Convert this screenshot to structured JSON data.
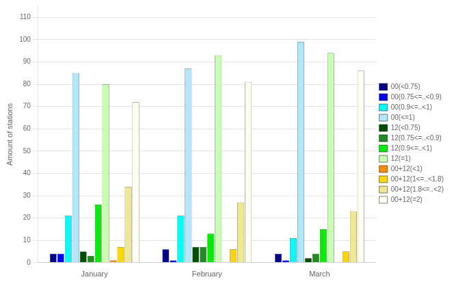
{
  "chart_data": {
    "type": "bar",
    "categories": [
      "January",
      "February",
      "March"
    ],
    "series": [
      {
        "name": "00(<0.75)",
        "color": "#00008B",
        "values": [
          4,
          6,
          4
        ]
      },
      {
        "name": "00(0.75<=..<0.9)",
        "color": "#0000FF",
        "values": [
          4,
          1,
          1
        ]
      },
      {
        "name": "00(0.9<=..<1)",
        "color": "#00FFFF",
        "values": [
          21,
          21,
          11
        ]
      },
      {
        "name": "00(<=1)",
        "color": "#B0E8FF",
        "values": [
          85,
          87,
          99
        ]
      },
      {
        "name": "12(<0.75)",
        "color": "#005000",
        "values": [
          5,
          7,
          2
        ]
      },
      {
        "name": "12(0.75<=..<0.9)",
        "color": "#228B22",
        "values": [
          3,
          7,
          4
        ]
      },
      {
        "name": "12(0.9<=..<1)",
        "color": "#00EE00",
        "values": [
          26,
          13,
          15
        ]
      },
      {
        "name": "12(=1)",
        "color": "#C8FFB0",
        "values": [
          80,
          93,
          94
        ]
      },
      {
        "name": "00+12(<1)",
        "color": "#FF8C00",
        "values": [
          1,
          0,
          0
        ]
      },
      {
        "name": "00+12(1<=..<1.8)",
        "color": "#FFD700",
        "values": [
          7,
          6,
          5
        ]
      },
      {
        "name": "00+12(1.8<=..<2)",
        "color": "#F0E890",
        "values": [
          34,
          27,
          23
        ]
      },
      {
        "name": "00+12(=2)",
        "color": "#FFFFF0",
        "values": [
          72,
          81,
          86
        ]
      }
    ],
    "ylabel": "Amount of stations",
    "ylim": [
      0,
      115
    ],
    "yticks": [
      0,
      10,
      20,
      30,
      40,
      50,
      60,
      70,
      80,
      90,
      100,
      110
    ],
    "grid": true,
    "legend": "right"
  }
}
